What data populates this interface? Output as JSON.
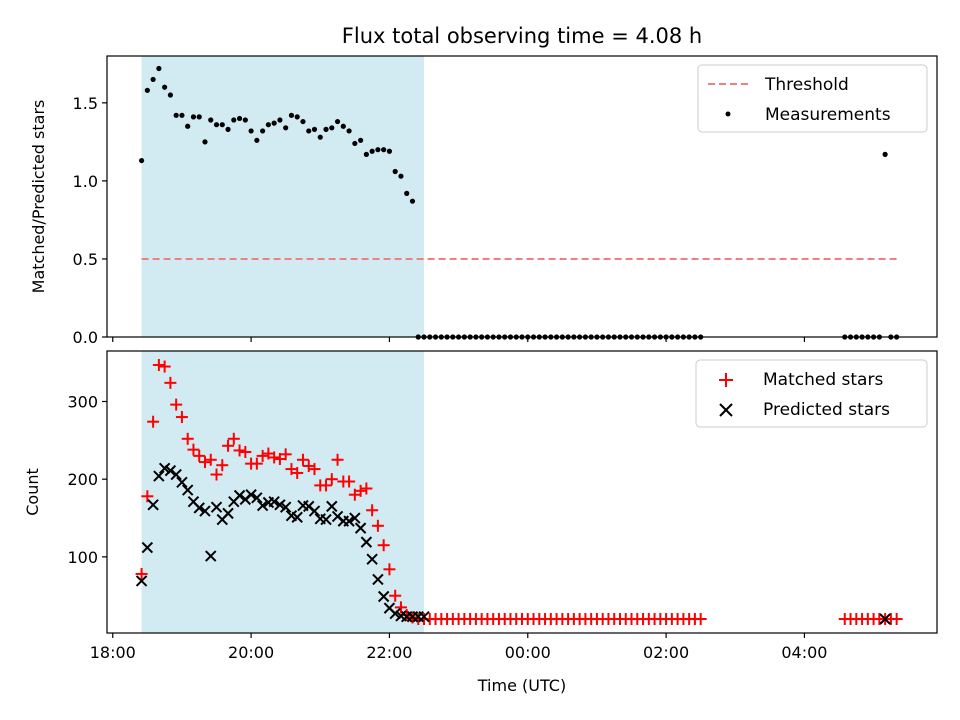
{
  "figure": {
    "title": "Flux total observing time = 4.08 h",
    "xlabel": "Time (UTC)",
    "shade_color": "#add8e6",
    "shade_range": [
      "18:25",
      "22:30"
    ]
  },
  "chart_data": [
    {
      "type": "scatter",
      "panel": "top",
      "ylabel": "Matched/Predicted stars",
      "ylim": [
        0,
        1.8
      ],
      "yticks": [
        0.0,
        0.5,
        1.0,
        1.5
      ],
      "yticklabels": [
        "0.0",
        "0.5",
        "1.0",
        "1.5"
      ],
      "xlim": [
        "17:55",
        "05:55"
      ],
      "xticks": [
        "18:00",
        "20:00",
        "22:00",
        "00:00",
        "02:00",
        "04:00"
      ],
      "xticklabels": [],
      "grid": false,
      "legend_position": "top-right",
      "threshold": {
        "name": "Threshold",
        "value": 0.5,
        "x_range": [
          "18:25",
          "05:20"
        ],
        "color": "#f08080",
        "style": "dashed"
      },
      "series": [
        {
          "name": "Measurements",
          "color": "#000000",
          "marker": "dot",
          "x": [
            "18:25",
            "18:30",
            "18:35",
            "18:40",
            "18:45",
            "18:50",
            "18:55",
            "19:00",
            "19:05",
            "19:10",
            "19:15",
            "19:20",
            "19:25",
            "19:30",
            "19:35",
            "19:40",
            "19:45",
            "19:50",
            "19:55",
            "20:00",
            "20:05",
            "20:10",
            "20:15",
            "20:20",
            "20:25",
            "20:30",
            "20:35",
            "20:40",
            "20:45",
            "20:50",
            "20:55",
            "21:00",
            "21:05",
            "21:10",
            "21:15",
            "21:20",
            "21:25",
            "21:30",
            "21:35",
            "21:40",
            "21:45",
            "21:50",
            "21:55",
            "22:00",
            "22:05",
            "22:10",
            "22:15",
            "22:20",
            "22:25",
            "22:30",
            "22:35",
            "22:40",
            "22:45",
            "22:50",
            "22:55",
            "23:00",
            "23:05",
            "23:10",
            "23:15",
            "23:20",
            "23:25",
            "23:30",
            "23:35",
            "23:40",
            "23:45",
            "23:50",
            "23:55",
            "00:00",
            "00:05",
            "00:10",
            "00:15",
            "00:20",
            "00:25",
            "00:30",
            "00:35",
            "00:40",
            "00:45",
            "00:50",
            "00:55",
            "01:00",
            "01:05",
            "01:10",
            "01:15",
            "01:20",
            "01:25",
            "01:30",
            "01:35",
            "01:40",
            "01:45",
            "01:50",
            "01:55",
            "02:00",
            "02:05",
            "02:10",
            "02:15",
            "02:20",
            "02:25",
            "02:30",
            "04:35",
            "04:40",
            "04:45",
            "04:50",
            "04:55",
            "05:00",
            "05:05",
            "05:10",
            "05:15",
            "05:20"
          ],
          "y": [
            1.13,
            1.58,
            1.65,
            1.72,
            1.6,
            1.55,
            1.42,
            1.42,
            1.35,
            1.41,
            1.41,
            1.25,
            1.39,
            1.36,
            1.36,
            1.33,
            1.39,
            1.4,
            1.39,
            1.32,
            1.26,
            1.32,
            1.36,
            1.37,
            1.39,
            1.34,
            1.42,
            1.41,
            1.38,
            1.32,
            1.33,
            1.28,
            1.33,
            1.34,
            1.38,
            1.35,
            1.32,
            1.24,
            1.26,
            1.17,
            1.19,
            1.2,
            1.2,
            1.19,
            1.06,
            1.03,
            0.92,
            0.87,
            0.0,
            0.0,
            0.0,
            0.0,
            0.0,
            0.0,
            0.0,
            0.0,
            0.0,
            0.0,
            0.0,
            0.0,
            0.0,
            0.0,
            0.0,
            0.0,
            0.0,
            0.0,
            0.0,
            0.0,
            0.0,
            0.0,
            0.0,
            0.0,
            0.0,
            0.0,
            0.0,
            0.0,
            0.0,
            0.0,
            0.0,
            0.0,
            0.0,
            0.0,
            0.0,
            0.0,
            0.0,
            0.0,
            0.0,
            0.0,
            0.0,
            0.0,
            0.0,
            0.0,
            0.0,
            0.0,
            0.0,
            0.0,
            0.0,
            0.0,
            0.0,
            0.0,
            0.0,
            0.0,
            0.0,
            0.0,
            0.0,
            1.17,
            0.0,
            0.0
          ]
        }
      ]
    },
    {
      "type": "scatter",
      "panel": "bottom",
      "ylabel": "Count",
      "ylim": [
        2,
        365
      ],
      "yticks": [
        100,
        200,
        300
      ],
      "yticklabels": [
        "100",
        "200",
        "300"
      ],
      "xlim": [
        "17:55",
        "05:55"
      ],
      "xticks": [
        "18:00",
        "20:00",
        "22:00",
        "00:00",
        "02:00",
        "04:00"
      ],
      "xticklabels": [
        "18:00",
        "20:00",
        "22:00",
        "00:00",
        "02:00",
        "04:00"
      ],
      "grid": false,
      "legend_position": "top-right",
      "series": [
        {
          "name": "Matched stars",
          "color": "#ff0000",
          "marker": "plus",
          "x": [
            "18:25",
            "18:30",
            "18:35",
            "18:40",
            "18:45",
            "18:50",
            "18:55",
            "19:00",
            "19:05",
            "19:10",
            "19:15",
            "19:20",
            "19:25",
            "19:30",
            "19:35",
            "19:40",
            "19:45",
            "19:50",
            "19:55",
            "20:00",
            "20:05",
            "20:10",
            "20:15",
            "20:20",
            "20:25",
            "20:30",
            "20:35",
            "20:40",
            "20:45",
            "20:50",
            "20:55",
            "21:00",
            "21:05",
            "21:10",
            "21:15",
            "21:20",
            "21:25",
            "21:30",
            "21:35",
            "21:40",
            "21:45",
            "21:50",
            "21:55",
            "22:00",
            "22:05",
            "22:10",
            "22:15",
            "22:20",
            "22:25",
            "22:30",
            "22:35",
            "22:40",
            "22:45",
            "22:50",
            "22:55",
            "23:00",
            "23:05",
            "23:10",
            "23:15",
            "23:20",
            "23:25",
            "23:30",
            "23:35",
            "23:40",
            "23:45",
            "23:50",
            "23:55",
            "00:00",
            "00:05",
            "00:10",
            "00:15",
            "00:20",
            "00:25",
            "00:30",
            "00:35",
            "00:40",
            "00:45",
            "00:50",
            "00:55",
            "01:00",
            "01:05",
            "01:10",
            "01:15",
            "01:20",
            "01:25",
            "01:30",
            "01:35",
            "01:40",
            "01:45",
            "01:50",
            "01:55",
            "02:00",
            "02:05",
            "02:10",
            "02:15",
            "02:20",
            "02:25",
            "02:30",
            "04:35",
            "04:40",
            "04:45",
            "04:50",
            "04:55",
            "05:00",
            "05:05",
            "05:10",
            "05:15",
            "05:20"
          ],
          "y": [
            78,
            178,
            274,
            347,
            345,
            324,
            296,
            280,
            252,
            238,
            230,
            222,
            225,
            206,
            218,
            243,
            252,
            237,
            235,
            220,
            220,
            230,
            233,
            228,
            226,
            232,
            213,
            208,
            225,
            217,
            213,
            192,
            192,
            200,
            225,
            197,
            197,
            180,
            185,
            188,
            160,
            140,
            115,
            84,
            50,
            35,
            25,
            22,
            20,
            20,
            20,
            20,
            20,
            20,
            20,
            20,
            20,
            20,
            20,
            20,
            20,
            20,
            20,
            20,
            20,
            20,
            20,
            20,
            20,
            20,
            20,
            20,
            20,
            20,
            20,
            20,
            20,
            20,
            20,
            20,
            20,
            20,
            20,
            20,
            20,
            20,
            20,
            20,
            20,
            20,
            20,
            20,
            20,
            20,
            20,
            20,
            20,
            20,
            20,
            20,
            20,
            20,
            20,
            20,
            20,
            20,
            20,
            20
          ]
        },
        {
          "name": "Predicted stars",
          "color": "#000000",
          "marker": "x",
          "x": [
            "18:25",
            "18:30",
            "18:35",
            "18:40",
            "18:45",
            "18:50",
            "18:55",
            "19:00",
            "19:05",
            "19:10",
            "19:15",
            "19:20",
            "19:25",
            "19:30",
            "19:35",
            "19:40",
            "19:45",
            "19:50",
            "19:55",
            "20:00",
            "20:05",
            "20:10",
            "20:15",
            "20:20",
            "20:25",
            "20:30",
            "20:35",
            "20:40",
            "20:45",
            "20:50",
            "20:55",
            "21:00",
            "21:05",
            "21:10",
            "21:15",
            "21:20",
            "21:25",
            "21:30",
            "21:35",
            "21:40",
            "21:45",
            "21:50",
            "21:55",
            "22:00",
            "22:05",
            "22:10",
            "22:15",
            "22:20",
            "22:25",
            "22:30",
            "05:10"
          ],
          "y": [
            69,
            112,
            167,
            204,
            214,
            211,
            206,
            196,
            186,
            171,
            163,
            159,
            101,
            164,
            148,
            156,
            171,
            179,
            174,
            180,
            176,
            166,
            170,
            171,
            167,
            164,
            153,
            151,
            166,
            165,
            159,
            149,
            148,
            165,
            152,
            146,
            146,
            150,
            137,
            119,
            97,
            71,
            49,
            34,
            27,
            24,
            23,
            23,
            23,
            23,
            20
          ]
        }
      ]
    }
  ]
}
